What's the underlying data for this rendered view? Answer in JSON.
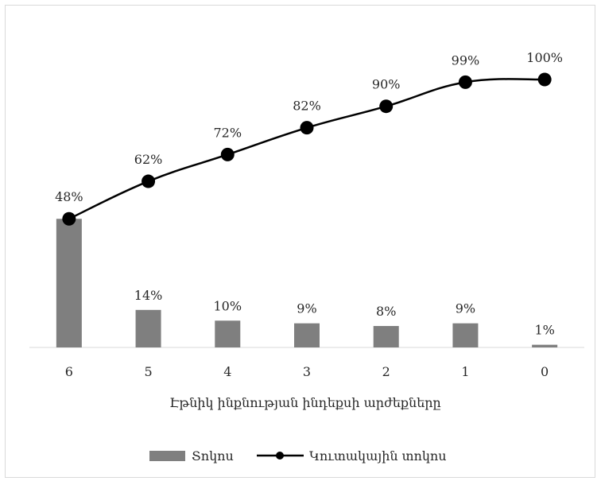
{
  "chart_data": {
    "type": "bar",
    "categories": [
      "6",
      "5",
      "4",
      "3",
      "2",
      "1",
      "0"
    ],
    "series": [
      {
        "name": "Տոկոս",
        "type": "bar",
        "values": [
          48,
          14,
          10,
          9,
          8,
          9,
          1
        ],
        "labels": [
          "48%",
          "14%",
          "10%",
          "9%",
          "8%",
          "9%",
          "1%"
        ],
        "color": "#7f7f7f"
      },
      {
        "name": "Կուտակային տոկոս",
        "type": "line",
        "values": [
          48,
          62,
          72,
          82,
          90,
          99,
          100
        ],
        "labels": [
          "48%",
          "62%",
          "72%",
          "82%",
          "90%",
          "99%",
          "100%"
        ],
        "color": "#000000"
      }
    ],
    "title": "",
    "xlabel": "Էթնիկ ինքնության ինդեքսի արժեքները",
    "ylabel": "",
    "ylim": [
      0,
      100
    ],
    "grid": false,
    "legend": "bottom"
  }
}
